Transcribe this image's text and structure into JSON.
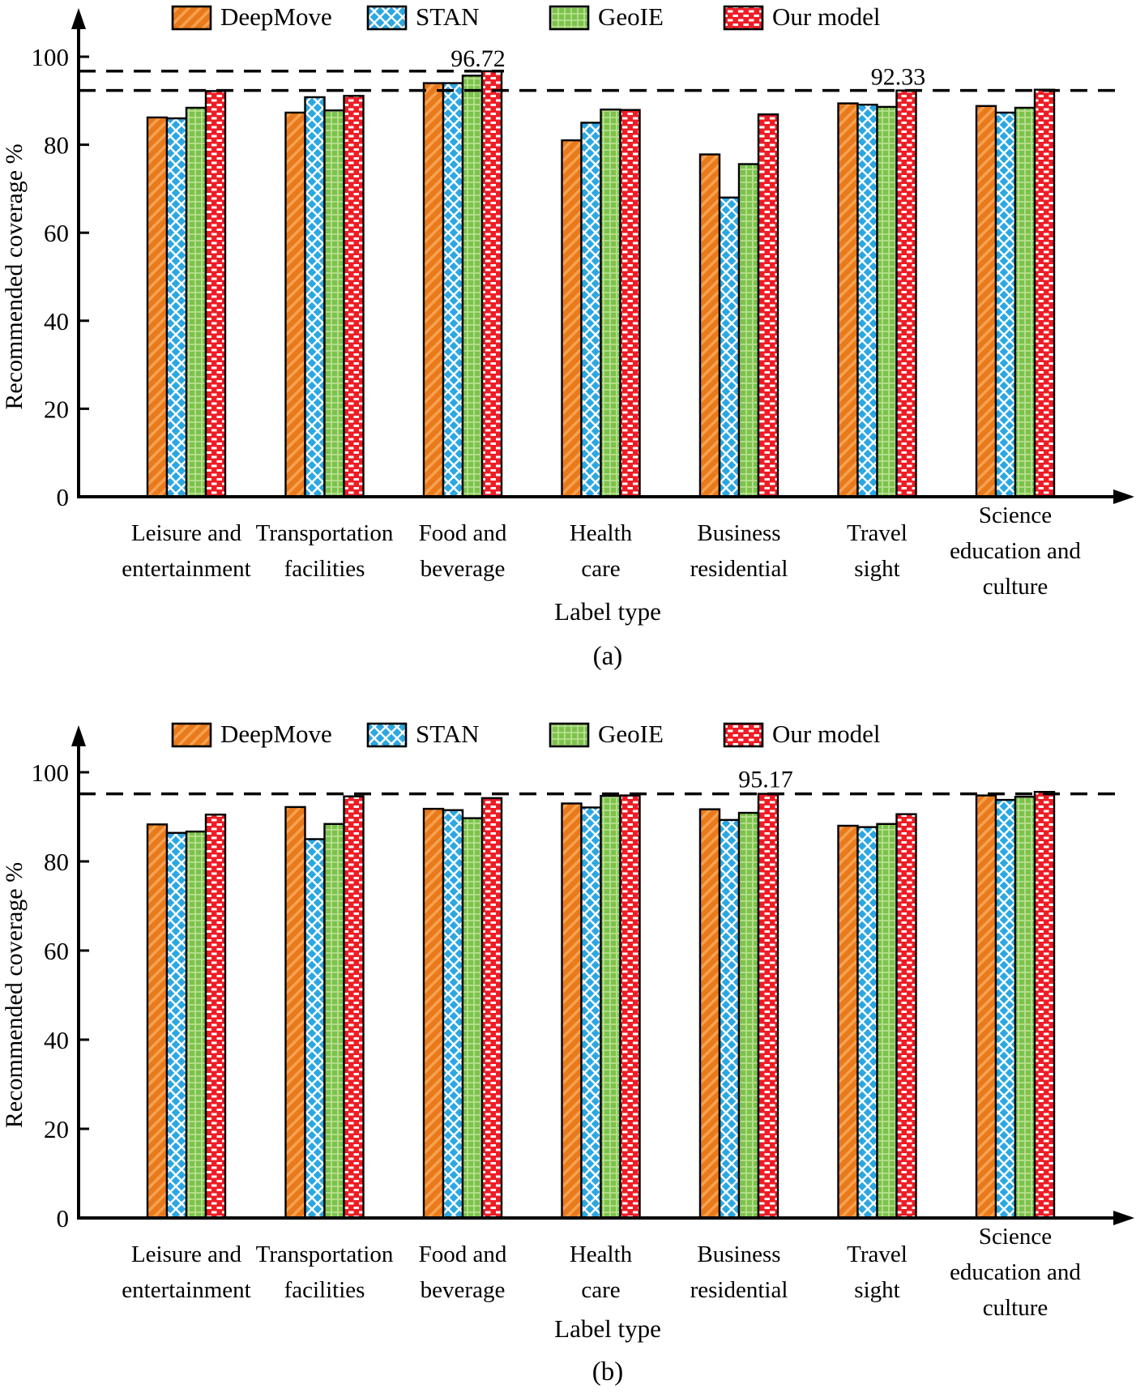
{
  "figure": {
    "background": "#FFFFFF",
    "axis_color": "#000000",
    "legend": {
      "position": "top",
      "items": [
        {
          "label": "DeepMove",
          "color": "#E97A1C",
          "pattern": "diagonal-stripes",
          "stripe_color": "#F6A14F"
        },
        {
          "label": "STAN",
          "color": "#2BA7E2",
          "pattern": "diamond-crosshatch",
          "stripe_color": "#FFFFFF"
        },
        {
          "label": "GeoIE",
          "color": "#7CC24D",
          "pattern": "grid",
          "stripe_color": "#B8E08E"
        },
        {
          "label": "Our model",
          "color": "#EE1C25",
          "pattern": "white-dashes",
          "stripe_color": "#FFFFFF"
        }
      ]
    }
  },
  "chart_data": [
    {
      "id": "a",
      "type": "bar",
      "caption": "(a)",
      "title": "",
      "xlabel": "Label type",
      "ylabel": "Recommended coverage %",
      "ylim": [
        0,
        100
      ],
      "yticks": [
        0,
        20,
        40,
        60,
        80,
        100
      ],
      "grid": false,
      "legend_position": "top",
      "categories": [
        "Leisure and entertainment",
        "Transportation facilities",
        "Food and beverage",
        "Health care",
        "Business residential",
        "Travel sight",
        "Science education and culture"
      ],
      "category_lines": [
        [
          "Leisure and",
          "entertainment"
        ],
        [
          "Transportation",
          "facilities"
        ],
        [
          "Food and",
          "beverage"
        ],
        [
          "Health",
          "care"
        ],
        [
          "Business",
          "residential"
        ],
        [
          "Travel",
          "sight"
        ],
        [
          "Science",
          "education and",
          "culture"
        ]
      ],
      "series": [
        {
          "name": "DeepMove",
          "values": [
            86.2,
            87.3,
            94.0,
            81.0,
            77.8,
            89.4,
            88.8
          ]
        },
        {
          "name": "STAN",
          "values": [
            86.0,
            90.8,
            94.0,
            85.0,
            68.0,
            89.1,
            87.3
          ]
        },
        {
          "name": "GeoIE",
          "values": [
            88.4,
            87.8,
            95.7,
            88.0,
            75.6,
            88.6,
            88.4
          ]
        },
        {
          "name": "Our model",
          "values": [
            92.2,
            91.1,
            96.72,
            87.9,
            86.9,
            92.33,
            92.5
          ]
        }
      ],
      "reference_lines": [
        {
          "value": 96.72,
          "style": "dashed",
          "color": "#000000",
          "extent": "partial"
        },
        {
          "value": 92.33,
          "style": "dashed",
          "color": "#000000",
          "extent": "full"
        }
      ],
      "annotations": [
        {
          "text": "96.72",
          "category": "Food and beverage"
        },
        {
          "text": "92.33",
          "category": "Travel sight"
        }
      ]
    },
    {
      "id": "b",
      "type": "bar",
      "caption": "(b)",
      "title": "",
      "xlabel": "Label type",
      "ylabel": "Recommended coverage %",
      "ylim": [
        0,
        100
      ],
      "yticks": [
        0,
        20,
        40,
        60,
        80,
        100
      ],
      "grid": false,
      "legend_position": "top",
      "categories": [
        "Leisure and entertainment",
        "Transportation facilities",
        "Food and beverage",
        "Health care",
        "Business residential",
        "Travel sight",
        "Science education and culture"
      ],
      "category_lines": [
        [
          "Leisure and",
          "entertainment"
        ],
        [
          "Transportation",
          "facilities"
        ],
        [
          "Food and",
          "beverage"
        ],
        [
          "Health",
          "care"
        ],
        [
          "Business",
          "residential"
        ],
        [
          "Travel",
          "sight"
        ],
        [
          "Science",
          "education and",
          "culture"
        ]
      ],
      "series": [
        {
          "name": "DeepMove",
          "values": [
            88.3,
            92.2,
            91.8,
            93.0,
            91.7,
            88.0,
            94.8
          ]
        },
        {
          "name": "STAN",
          "values": [
            86.4,
            85.0,
            91.5,
            92.1,
            89.3,
            87.7,
            93.8
          ]
        },
        {
          "name": "GeoIE",
          "values": [
            86.7,
            88.4,
            89.7,
            94.7,
            90.9,
            88.4,
            94.5
          ]
        },
        {
          "name": "Our model",
          "values": [
            90.5,
            94.6,
            94.2,
            94.8,
            95.17,
            90.6,
            95.6
          ]
        }
      ],
      "reference_lines": [
        {
          "value": 95.17,
          "style": "dashed",
          "color": "#000000",
          "extent": "full"
        }
      ],
      "annotations": [
        {
          "text": "95.17",
          "category": "Business residential"
        }
      ]
    }
  ]
}
